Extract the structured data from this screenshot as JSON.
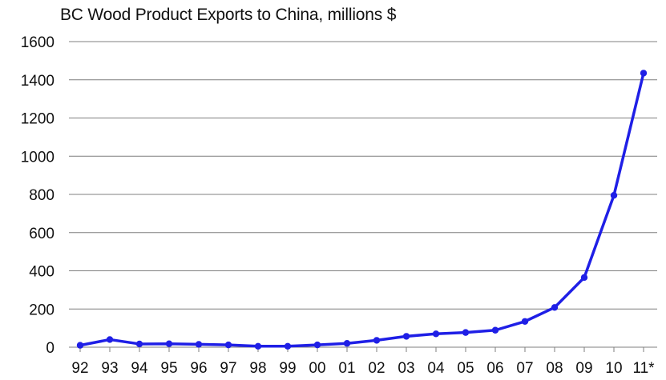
{
  "chart_data": {
    "type": "line",
    "title": "BC Wood Product Exports to China, millions $",
    "xlabel": "",
    "ylabel": "",
    "categories": [
      "92",
      "93",
      "94",
      "95",
      "96",
      "97",
      "98",
      "99",
      "00",
      "01",
      "02",
      "03",
      "04",
      "05",
      "06",
      "07",
      "08",
      "09",
      "10",
      "11*"
    ],
    "series": [
      {
        "values": [
          10,
          40,
          17,
          18,
          15,
          12,
          5,
          5,
          12,
          20,
          36,
          57,
          70,
          77,
          89,
          135,
          208,
          365,
          795,
          1435
        ],
        "color": "#1f1fe6"
      }
    ],
    "ylim": [
      0,
      1600
    ],
    "yticks": [
      0,
      200,
      400,
      600,
      800,
      1000,
      1200,
      1400,
      1600
    ],
    "grid": "horizontal",
    "legend": "none"
  }
}
